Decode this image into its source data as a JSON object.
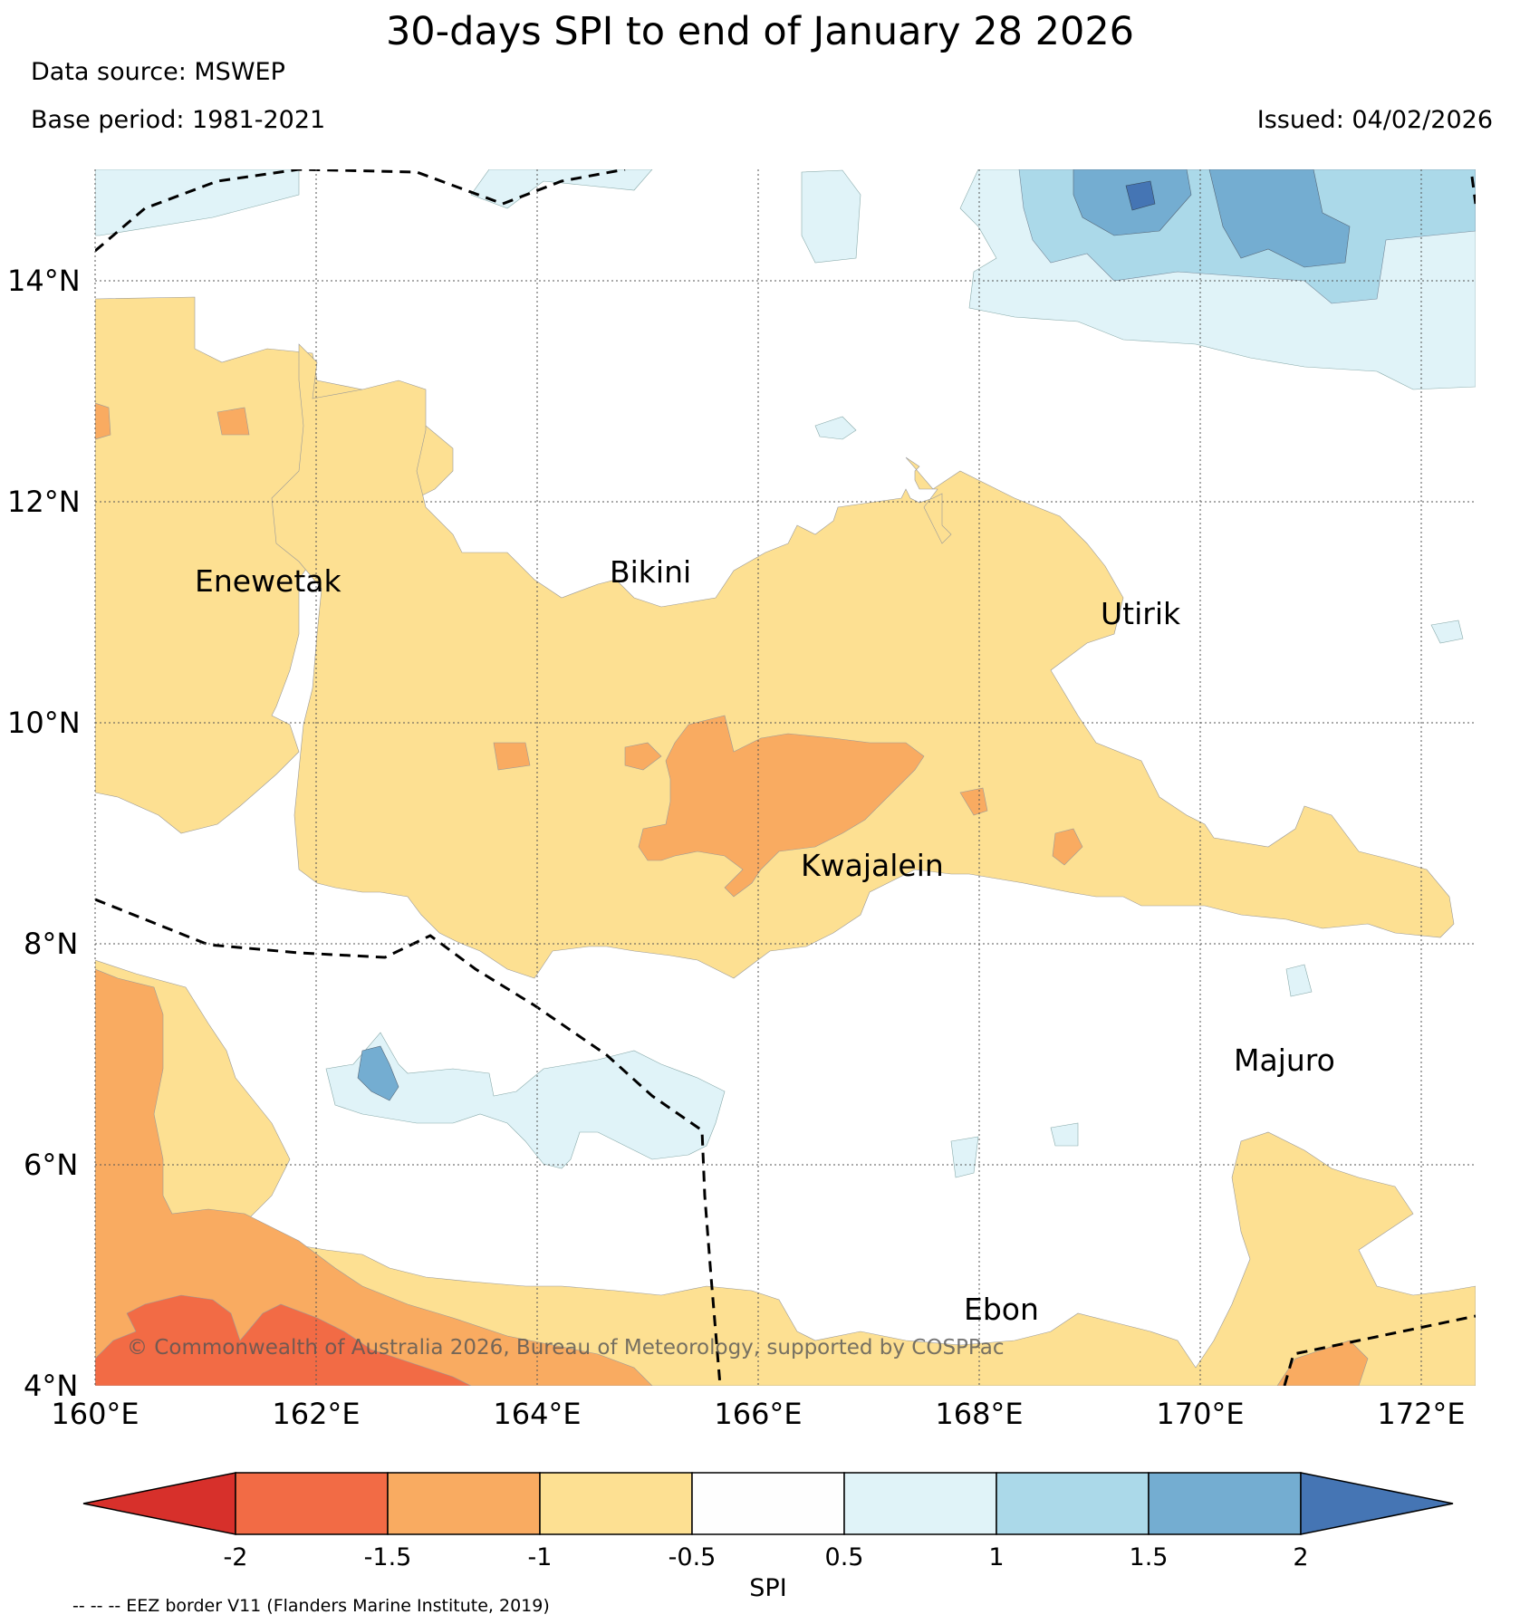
{
  "title": "30-days SPI to end of January 28 2026",
  "data_source": "Data source: MSWEP",
  "base_period": "Base period: 1981-2021",
  "issued": "Issued: 04/02/2026",
  "copyright": "© Commonwealth of Australia 2026, Bureau of Meteorology, supported by COSPPac",
  "footnote": "-- -- -- EEZ border V11 (Flanders Marine Institute, 2019)",
  "places": {
    "enewetak": "Enewetak",
    "bikini": "Bikini",
    "utirik": "Utirik",
    "kwajalein": "Kwajalein",
    "majuro": "Majuro",
    "ebon": "Ebon"
  },
  "lon_labels": [
    "160°E",
    "162°E",
    "164°E",
    "166°E",
    "168°E",
    "170°E",
    "172°E"
  ],
  "lat_labels": [
    "14°N",
    "12°N",
    "10°N",
    "8°N",
    "6°N",
    "4°N"
  ],
  "colorbar": {
    "label": "SPI",
    "ticks": [
      "-2",
      "-1.5",
      "-1",
      "-0.5",
      "0.5",
      "1",
      "1.5",
      "2"
    ],
    "colors": [
      "#d7302b",
      "#f26b45",
      "#f9ab61",
      "#fde092",
      "#fefefe",
      "#e0f3f8",
      "#abd9e9",
      "#74add1",
      "#4575b4"
    ]
  },
  "chart_data": {
    "type": "heatmap",
    "title": "30-days SPI to end of January 28 2026",
    "variable": "SPI",
    "lon_range": [
      160,
      172.5
    ],
    "lat_range": [
      4,
      15
    ],
    "class_breaks": [
      -2,
      -1.5,
      -1,
      -0.5,
      0.5,
      1,
      1.5,
      2
    ],
    "locations": [
      {
        "name": "Enewetak",
        "lon": 161.9,
        "lat": 11.4
      },
      {
        "name": "Bikini",
        "lon": 165.4,
        "lat": 11.6
      },
      {
        "name": "Utirik",
        "lon": 169.8,
        "lat": 11.2
      },
      {
        "name": "Kwajalein",
        "lon": 167.7,
        "lat": 8.7
      },
      {
        "name": "Majuro",
        "lon": 171.2,
        "lat": 7.1
      },
      {
        "name": "Ebon",
        "lon": 168.7,
        "lat": 4.6
      }
    ]
  }
}
